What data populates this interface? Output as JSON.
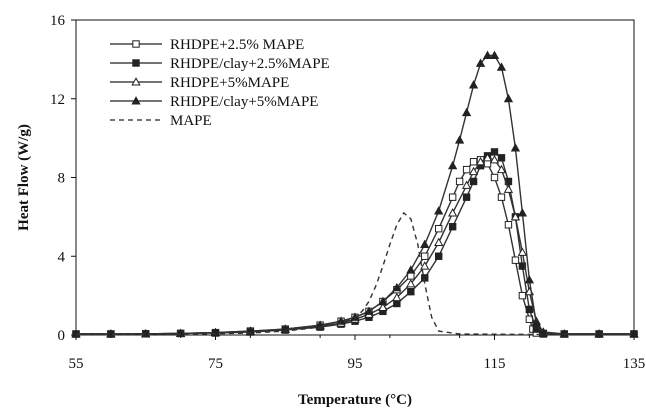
{
  "chart_data": {
    "type": "line",
    "title": "",
    "xlabel": "Temperature (°C)",
    "ylabel": "Heat Flow (W/g)",
    "xlim": [
      55,
      135
    ],
    "ylim": [
      0,
      16
    ],
    "x_ticks": [
      "55",
      "75",
      "95",
      "115",
      "135"
    ],
    "y_ticks": [
      "0",
      "4",
      "8",
      "12",
      "16"
    ],
    "grid": false,
    "legend_position": "top-left",
    "colors": {
      "line": "#333333",
      "axis": "#111111",
      "background": "#ffffff"
    },
    "series": [
      {
        "name": "RHDPE+2.5% MAPE",
        "marker": "square-open",
        "dash": "solid",
        "x": [
          55,
          60,
          65,
          70,
          75,
          80,
          85,
          90,
          93,
          95,
          97,
          99,
          101,
          103,
          105,
          107,
          109,
          110,
          111,
          112,
          113,
          114,
          115,
          116,
          117,
          118,
          119,
          120,
          120.5,
          121,
          122,
          125,
          130,
          135
        ],
        "y": [
          0.05,
          0.05,
          0.06,
          0.08,
          0.12,
          0.2,
          0.3,
          0.5,
          0.7,
          0.9,
          1.2,
          1.7,
          2.3,
          3.0,
          4.0,
          5.4,
          7.0,
          7.8,
          8.4,
          8.8,
          8.9,
          8.7,
          8.0,
          7.0,
          5.6,
          3.8,
          2.0,
          0.8,
          0.3,
          0.1,
          0.05,
          0.05,
          0.05,
          0.05
        ]
      },
      {
        "name": "RHDPE/clay+2.5%MAPE",
        "marker": "square-filled",
        "dash": "solid",
        "x": [
          55,
          60,
          65,
          70,
          75,
          80,
          85,
          90,
          93,
          95,
          97,
          99,
          101,
          103,
          105,
          107,
          109,
          111,
          112,
          113,
          114,
          115,
          116,
          117,
          118,
          119,
          120,
          121,
          122,
          125,
          130,
          135
        ],
        "y": [
          0.05,
          0.05,
          0.06,
          0.08,
          0.1,
          0.15,
          0.25,
          0.4,
          0.55,
          0.7,
          0.9,
          1.2,
          1.6,
          2.2,
          2.9,
          4.0,
          5.5,
          7.0,
          7.8,
          8.6,
          9.1,
          9.3,
          9.0,
          7.8,
          6.0,
          3.5,
          1.3,
          0.3,
          0.08,
          0.05,
          0.05,
          0.05
        ]
      },
      {
        "name": "RHDPE+5%MAPE",
        "marker": "triangle-open",
        "dash": "solid",
        "x": [
          55,
          60,
          65,
          70,
          75,
          80,
          85,
          90,
          93,
          95,
          97,
          99,
          101,
          103,
          105,
          107,
          109,
          111,
          112,
          113,
          114,
          115,
          116,
          117,
          118,
          119,
          120,
          121,
          122,
          125,
          130,
          135
        ],
        "y": [
          0.05,
          0.05,
          0.06,
          0.08,
          0.12,
          0.18,
          0.28,
          0.45,
          0.6,
          0.8,
          1.05,
          1.4,
          1.9,
          2.6,
          3.5,
          4.7,
          6.2,
          7.6,
          8.3,
          8.8,
          9.0,
          8.9,
          8.4,
          7.4,
          6.0,
          4.2,
          2.2,
          0.7,
          0.15,
          0.05,
          0.05,
          0.05
        ]
      },
      {
        "name": "RHDPE/clay+5%MAPE",
        "marker": "triangle-filled",
        "dash": "solid",
        "x": [
          55,
          60,
          65,
          70,
          75,
          80,
          85,
          90,
          93,
          95,
          97,
          99,
          101,
          103,
          105,
          107,
          109,
          110,
          111,
          112,
          113,
          114,
          115,
          116,
          117,
          118,
          119,
          120,
          121,
          122,
          125,
          130,
          135
        ],
        "y": [
          0.05,
          0.05,
          0.06,
          0.08,
          0.12,
          0.2,
          0.3,
          0.5,
          0.7,
          0.9,
          1.2,
          1.7,
          2.4,
          3.3,
          4.6,
          6.3,
          8.6,
          9.9,
          11.3,
          12.7,
          13.8,
          14.2,
          14.2,
          13.6,
          12.0,
          9.5,
          6.2,
          2.8,
          0.6,
          0.1,
          0.05,
          0.05,
          0.05
        ]
      },
      {
        "name": "MAPE",
        "marker": "none",
        "dash": "dashed",
        "x": [
          55,
          70,
          80,
          85,
          90,
          93,
          95,
          96,
          97,
          98,
          99,
          100,
          101,
          102,
          103,
          104,
          105,
          106,
          107,
          110,
          120,
          135
        ],
        "y": [
          0.02,
          0.03,
          0.1,
          0.2,
          0.4,
          0.6,
          0.9,
          1.2,
          1.7,
          2.5,
          3.5,
          4.6,
          5.6,
          6.2,
          5.9,
          4.6,
          2.6,
          0.9,
          0.2,
          0.05,
          0.03,
          0.03
        ]
      }
    ]
  }
}
